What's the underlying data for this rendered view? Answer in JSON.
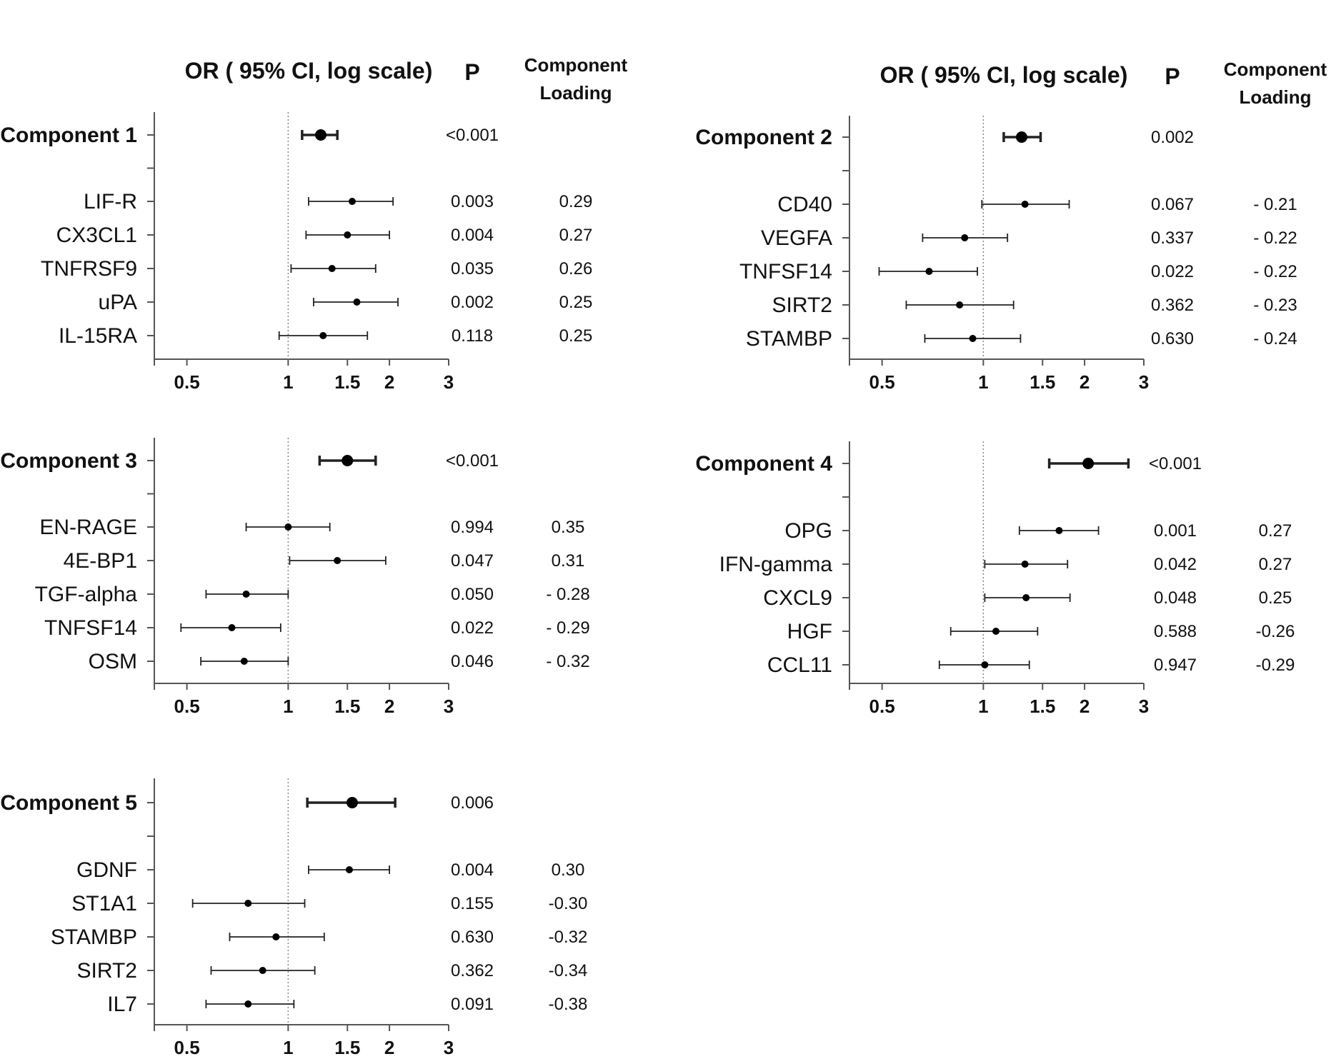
{
  "chart_data": [
    {
      "type": "forest",
      "header_or": "OR ( 95% CI, log scale)",
      "header_p": "P",
      "header_loading_1": "Component",
      "header_loading_2": "Loading",
      "x_scale": "log",
      "xlim": [
        0.4,
        3
      ],
      "reference_x": 1,
      "x_ticks": [
        {
          "value": 0.5,
          "label": "0.5"
        },
        {
          "value": 1,
          "label": "1"
        },
        {
          "value": 1.5,
          "label": "1.5"
        },
        {
          "value": 2,
          "label": "2"
        },
        {
          "value": 3,
          "label": "3"
        }
      ],
      "rows": [
        {
          "label": "Component 1",
          "or": 1.25,
          "lo": 1.1,
          "hi": 1.4,
          "p": "<0.001",
          "loading": "",
          "bold": true
        },
        {
          "label": "LIF-R",
          "or": 1.55,
          "lo": 1.15,
          "hi": 2.05,
          "p": "0.003",
          "loading": "0.29",
          "bold": false
        },
        {
          "label": "CX3CL1",
          "or": 1.5,
          "lo": 1.13,
          "hi": 2.0,
          "p": "0.004",
          "loading": "0.27",
          "bold": false
        },
        {
          "label": "TNFRSF9",
          "or": 1.35,
          "lo": 1.02,
          "hi": 1.82,
          "p": "0.035",
          "loading": "0.26",
          "bold": false
        },
        {
          "label": "uPA",
          "or": 1.6,
          "lo": 1.19,
          "hi": 2.12,
          "p": "0.002",
          "loading": "0.25",
          "bold": false
        },
        {
          "label": "IL-15RA",
          "or": 1.27,
          "lo": 0.94,
          "hi": 1.72,
          "p": "0.118",
          "loading": "0.25",
          "bold": false
        }
      ]
    },
    {
      "type": "forest",
      "header_or": "OR ( 95% CI, log scale)",
      "header_p": "P",
      "header_loading_1": "Component",
      "header_loading_2": "Loading",
      "x_scale": "log",
      "xlim": [
        0.4,
        3
      ],
      "reference_x": 1,
      "x_ticks": [
        {
          "value": 0.5,
          "label": "0.5"
        },
        {
          "value": 1,
          "label": "1"
        },
        {
          "value": 1.5,
          "label": "1.5"
        },
        {
          "value": 2,
          "label": "2"
        },
        {
          "value": 3,
          "label": "3"
        }
      ],
      "rows": [
        {
          "label": "Component 2",
          "or": 1.3,
          "lo": 1.15,
          "hi": 1.48,
          "p": "0.002",
          "loading": "",
          "bold": true
        },
        {
          "label": "CD40",
          "or": 1.33,
          "lo": 0.99,
          "hi": 1.8,
          "p": "0.067",
          "loading": "- 0.21",
          "bold": false
        },
        {
          "label": "VEGFA",
          "or": 0.88,
          "lo": 0.66,
          "hi": 1.18,
          "p": "0.337",
          "loading": "- 0.22",
          "bold": false
        },
        {
          "label": "TNFSF14",
          "or": 0.69,
          "lo": 0.49,
          "hi": 0.96,
          "p": "0.022",
          "loading": "- 0.22",
          "bold": false
        },
        {
          "label": "SIRT2",
          "or": 0.85,
          "lo": 0.59,
          "hi": 1.23,
          "p": "0.362",
          "loading": "- 0.23",
          "bold": false
        },
        {
          "label": "STAMBP",
          "or": 0.93,
          "lo": 0.67,
          "hi": 1.29,
          "p": "0.630",
          "loading": "- 0.24",
          "bold": false
        }
      ]
    },
    {
      "type": "forest",
      "x_scale": "log",
      "xlim": [
        0.4,
        3
      ],
      "reference_x": 1,
      "x_ticks": [
        {
          "value": 0.5,
          "label": "0.5"
        },
        {
          "value": 1,
          "label": "1"
        },
        {
          "value": 1.5,
          "label": "1.5"
        },
        {
          "value": 2,
          "label": "2"
        },
        {
          "value": 3,
          "label": "3"
        }
      ],
      "rows": [
        {
          "label": "Component 3",
          "or": 1.5,
          "lo": 1.24,
          "hi": 1.82,
          "p": "<0.001",
          "loading": "",
          "bold": true
        },
        {
          "label": "EN-RAGE",
          "or": 1.0,
          "lo": 0.75,
          "hi": 1.33,
          "p": "0.994",
          "loading": "0.35",
          "bold": false
        },
        {
          "label": "4E-BP1",
          "or": 1.4,
          "lo": 1.01,
          "hi": 1.95,
          "p": "0.047",
          "loading": "0.31",
          "bold": false
        },
        {
          "label": "TGF-alpha",
          "or": 0.75,
          "lo": 0.57,
          "hi": 1.0,
          "p": "0.050",
          "loading": "- 0.28",
          "bold": false
        },
        {
          "label": "TNFSF14",
          "or": 0.68,
          "lo": 0.48,
          "hi": 0.95,
          "p": "0.022",
          "loading": "- 0.29",
          "bold": false
        },
        {
          "label": "OSM",
          "or": 0.74,
          "lo": 0.55,
          "hi": 1.0,
          "p": "0.046",
          "loading": "- 0.32",
          "bold": false
        }
      ]
    },
    {
      "type": "forest",
      "x_scale": "log",
      "xlim": [
        0.4,
        3
      ],
      "reference_x": 1,
      "x_ticks": [
        {
          "value": 0.5,
          "label": "0.5"
        },
        {
          "value": 1,
          "label": "1"
        },
        {
          "value": 1.5,
          "label": "1.5"
        },
        {
          "value": 2,
          "label": "2"
        },
        {
          "value": 3,
          "label": "3"
        }
      ],
      "rows": [
        {
          "label": "Component 4",
          "or": 2.05,
          "lo": 1.57,
          "hi": 2.7,
          "p": "<0.001",
          "loading": "",
          "bold": true
        },
        {
          "label": "OPG",
          "or": 1.68,
          "lo": 1.28,
          "hi": 2.2,
          "p": "0.001",
          "loading": "0.27",
          "bold": false
        },
        {
          "label": "IFN-gamma",
          "or": 1.33,
          "lo": 1.01,
          "hi": 1.78,
          "p": "0.042",
          "loading": "0.27",
          "bold": false
        },
        {
          "label": "CXCL9",
          "or": 1.34,
          "lo": 1.01,
          "hi": 1.81,
          "p": "0.048",
          "loading": "0.25",
          "bold": false
        },
        {
          "label": "HGF",
          "or": 1.09,
          "lo": 0.8,
          "hi": 1.45,
          "p": "0.588",
          "loading": "-0.26",
          "bold": false
        },
        {
          "label": "CCL11",
          "or": 1.01,
          "lo": 0.74,
          "hi": 1.37,
          "p": "0.947",
          "loading": "-0.29",
          "bold": false
        }
      ]
    },
    {
      "type": "forest",
      "x_scale": "log",
      "xlim": [
        0.4,
        3
      ],
      "reference_x": 1,
      "x_ticks": [
        {
          "value": 0.5,
          "label": "0.5"
        },
        {
          "value": 1,
          "label": "1"
        },
        {
          "value": 1.5,
          "label": "1.5"
        },
        {
          "value": 2,
          "label": "2"
        },
        {
          "value": 3,
          "label": "3"
        }
      ],
      "rows": [
        {
          "label": "Component 5",
          "or": 1.55,
          "lo": 1.14,
          "hi": 2.08,
          "p": "0.006",
          "loading": "",
          "bold": true
        },
        {
          "label": "GDNF",
          "or": 1.52,
          "lo": 1.15,
          "hi": 2.0,
          "p": "0.004",
          "loading": "0.30",
          "bold": false
        },
        {
          "label": "ST1A1",
          "or": 0.76,
          "lo": 0.52,
          "hi": 1.12,
          "p": "0.155",
          "loading": "-0.30",
          "bold": false
        },
        {
          "label": "STAMBP",
          "or": 0.92,
          "lo": 0.67,
          "hi": 1.28,
          "p": "0.630",
          "loading": "-0.32",
          "bold": false
        },
        {
          "label": "SIRT2",
          "or": 0.84,
          "lo": 0.59,
          "hi": 1.2,
          "p": "0.362",
          "loading": "-0.34",
          "bold": false
        },
        {
          "label": "IL7",
          "or": 0.76,
          "lo": 0.57,
          "hi": 1.04,
          "p": "0.091",
          "loading": "-0.38",
          "bold": false
        }
      ]
    }
  ]
}
